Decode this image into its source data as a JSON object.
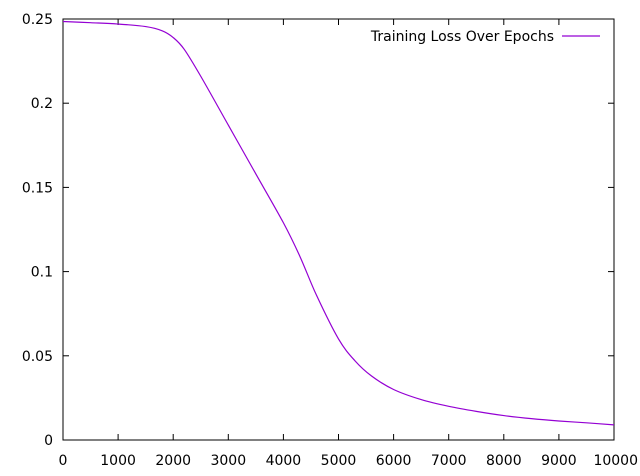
{
  "chart_data": {
    "type": "line",
    "title": "",
    "xlabel": "",
    "ylabel": "",
    "xlim": [
      0,
      10000
    ],
    "ylim": [
      0,
      0.25
    ],
    "grid": false,
    "legend_placement": "top-right",
    "x_ticks": [
      0,
      1000,
      2000,
      3000,
      4000,
      5000,
      6000,
      7000,
      8000,
      9000,
      10000
    ],
    "x_tick_labels": [
      "0",
      "1000",
      "2000",
      "3000",
      "4000",
      "5000",
      "6000",
      "7000",
      "8000",
      "9000",
      "10000"
    ],
    "y_ticks": [
      0,
      0.05,
      0.1,
      0.15,
      0.2,
      0.25
    ],
    "y_tick_labels": [
      "0",
      "0.05",
      "0.1",
      "0.15",
      "0.2",
      "0.25"
    ],
    "series": [
      {
        "name": "Training Loss Over Epochs",
        "color": "#9400d3",
        "x": [
          0,
          500,
          1000,
          1500,
          1800,
          2000,
          2200,
          2500,
          3000,
          3500,
          4000,
          4300,
          4600,
          5000,
          5300,
          5600,
          6000,
          6500,
          7000,
          7500,
          8000,
          8500,
          9000,
          9500,
          10000
        ],
        "y": [
          0.2485,
          0.2478,
          0.247,
          0.2455,
          0.243,
          0.239,
          0.232,
          0.216,
          0.187,
          0.158,
          0.129,
          0.109,
          0.086,
          0.06,
          0.047,
          0.038,
          0.03,
          0.024,
          0.02,
          0.017,
          0.0145,
          0.0127,
          0.0113,
          0.0102,
          0.009
        ]
      }
    ]
  }
}
